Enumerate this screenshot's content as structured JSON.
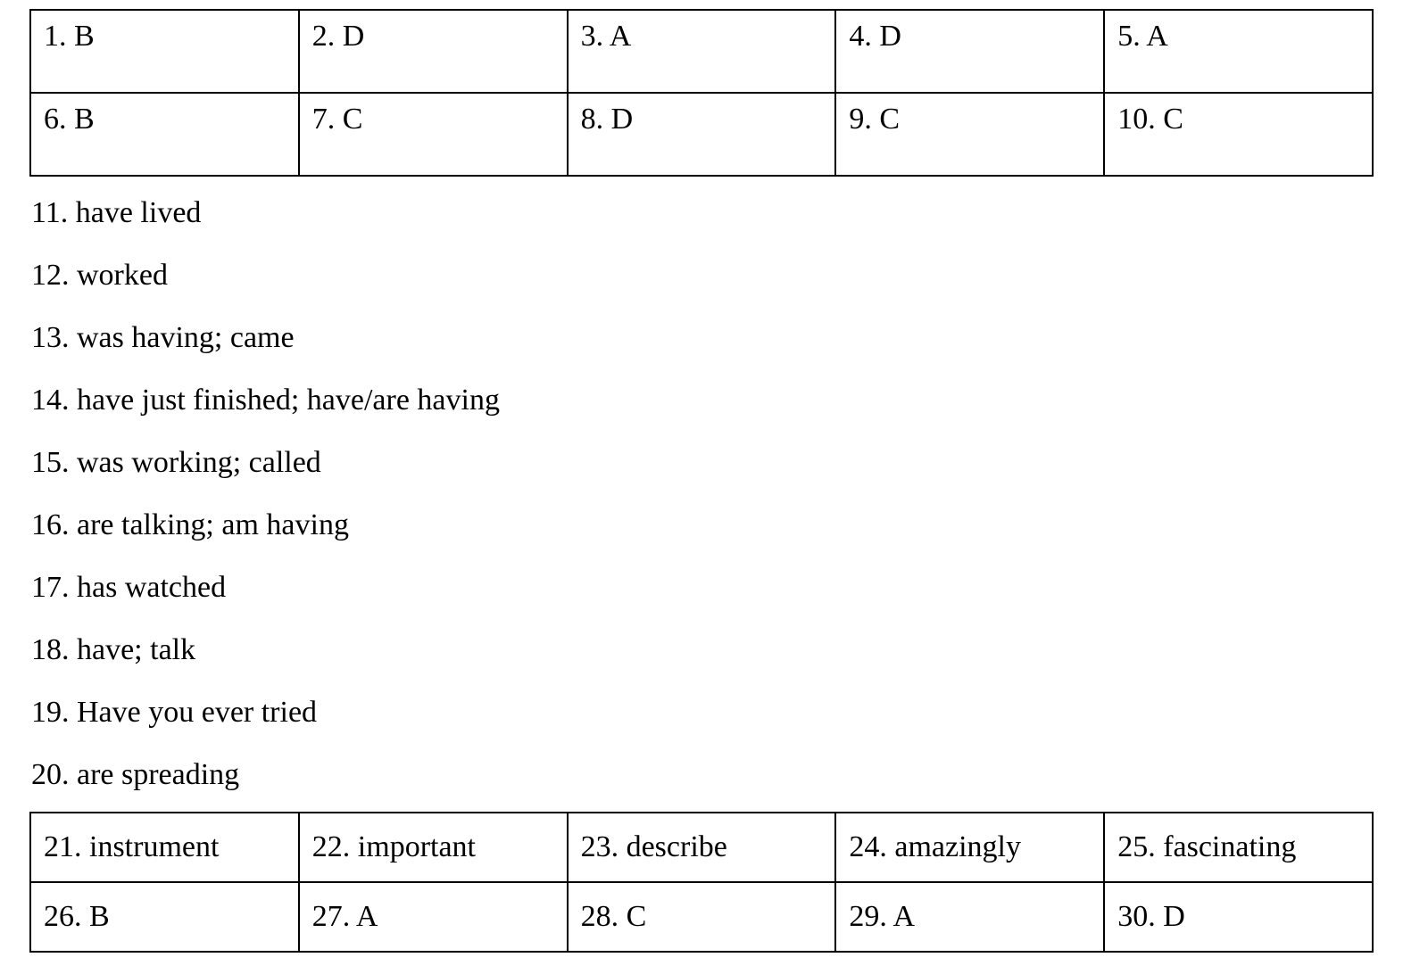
{
  "colors": {
    "background": "#ffffff",
    "text": "#000000",
    "table_border": "#000000"
  },
  "answer_key": {
    "table_1_10": {
      "rows": [
        [
          "1. B",
          "2. D",
          "3. A",
          "4. D",
          "5. A"
        ],
        [
          "6. B",
          "7. C",
          "8. D",
          "9. C",
          "10. C"
        ]
      ]
    },
    "list_11_20": {
      "items": [
        "11. have lived",
        "12. worked",
        "13. was having; came",
        "14. have just finished; have/are having",
        "15. was working; called",
        "16. are talking; am having",
        "17. has watched",
        "18. have; talk",
        "19. Have you ever tried",
        "20. are spreading"
      ]
    },
    "table_21_30": {
      "rows": [
        [
          "21. instrument",
          "22. important",
          "23. describe",
          "24. amazingly",
          "25. fascinating"
        ],
        [
          "26. B",
          "27. A",
          "28. C",
          "29. A",
          "30. D"
        ]
      ]
    }
  }
}
